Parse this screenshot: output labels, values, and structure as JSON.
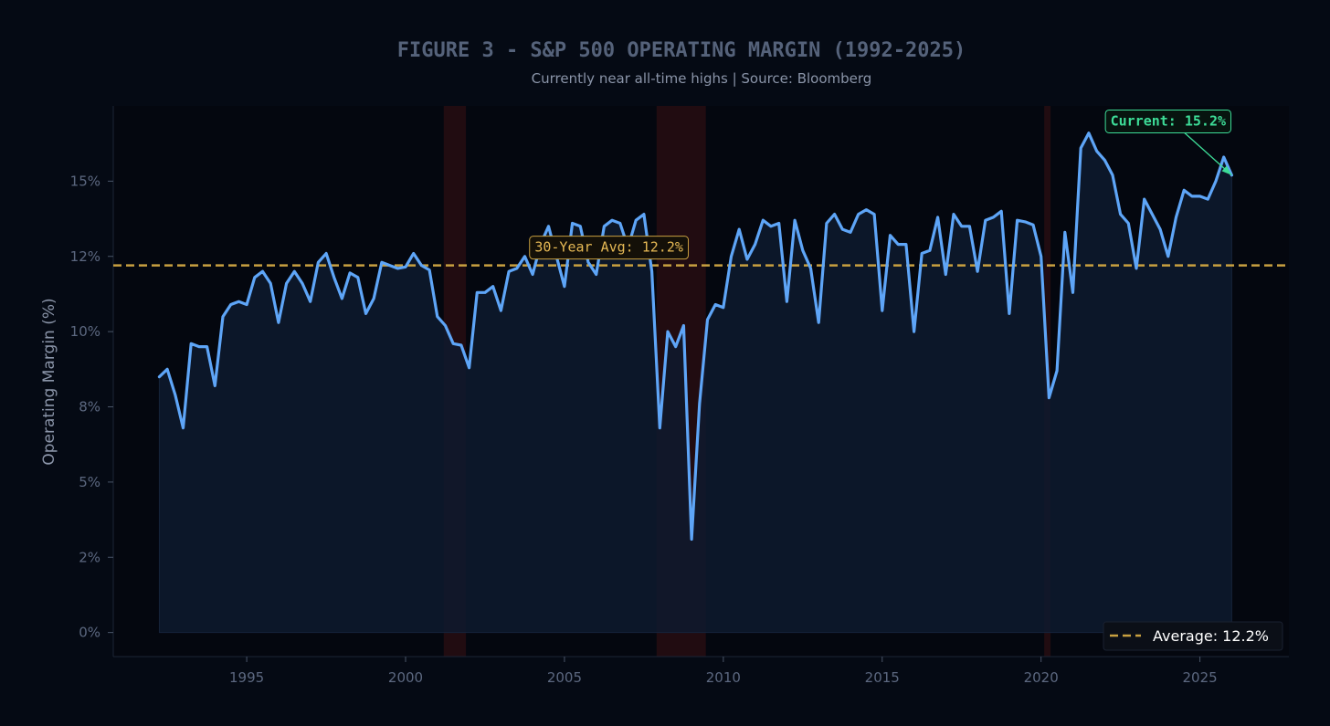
{
  "chart_data": {
    "type": "line",
    "title": "FIGURE 3  -  S&P 500 OPERATING MARGIN  (1992-2025)",
    "subtitle": "Currently near all-time highs  |  Source: Bloomberg",
    "xlabel": "",
    "ylabel": "Operating Margin (%)",
    "xlim": [
      1990.8,
      2027.8
    ],
    "ylim": [
      -0.8,
      17.5
    ],
    "x_ticks": [
      1995,
      2000,
      2005,
      2010,
      2015,
      2020,
      2025
    ],
    "x_tick_labels": [
      "1995",
      "2000",
      "2005",
      "2010",
      "2015",
      "2020",
      "2025"
    ],
    "y_ticks": [
      0,
      2.5,
      5,
      7.5,
      10,
      12.5,
      15
    ],
    "y_tick_labels": [
      "0%",
      "2%",
      "5%",
      "8%",
      "10%",
      "12%",
      "15%"
    ],
    "grid": false,
    "colors": {
      "line": "#5ea5f7",
      "fill": "#0e1a2e",
      "average": "#c8a040",
      "recession": "#3a1014",
      "current": "#3ddc97",
      "avg_label_text": "#e6b955"
    },
    "series": [
      {
        "name": "",
        "x": [
          1992.25,
          1992.5,
          1992.75,
          1993.0,
          1993.25,
          1993.5,
          1993.75,
          1994.0,
          1994.25,
          1994.5,
          1994.75,
          1995.0,
          1995.25,
          1995.5,
          1995.75,
          1996.0,
          1996.25,
          1996.5,
          1996.75,
          1997.0,
          1997.25,
          1997.5,
          1997.75,
          1998.0,
          1998.25,
          1998.5,
          1998.75,
          1999.0,
          1999.25,
          1999.5,
          1999.75,
          2000.0,
          2000.25,
          2000.5,
          2000.75,
          2001.0,
          2001.25,
          2001.5,
          2001.75,
          2002.0,
          2002.25,
          2002.5,
          2002.75,
          2003.0,
          2003.25,
          2003.5,
          2003.75,
          2004.0,
          2004.25,
          2004.5,
          2004.75,
          2005.0,
          2005.25,
          2005.5,
          2005.75,
          2006.0,
          2006.25,
          2006.5,
          2006.75,
          2007.0,
          2007.25,
          2007.5,
          2007.75,
          2008.0,
          2008.25,
          2008.5,
          2008.75,
          2009.0,
          2009.25,
          2009.5,
          2009.75,
          2010.0,
          2010.25,
          2010.5,
          2010.75,
          2011.0,
          2011.25,
          2011.5,
          2011.75,
          2012.0,
          2012.25,
          2012.5,
          2012.75,
          2013.0,
          2013.25,
          2013.5,
          2013.75,
          2014.0,
          2014.25,
          2014.5,
          2014.75,
          2015.0,
          2015.25,
          2015.5,
          2015.75,
          2016.0,
          2016.25,
          2016.5,
          2016.75,
          2017.0,
          2017.25,
          2017.5,
          2017.75,
          2018.0,
          2018.25,
          2018.5,
          2018.75,
          2019.0,
          2019.25,
          2019.5,
          2019.75,
          2020.0,
          2020.25,
          2020.5,
          2020.75,
          2021.0,
          2021.25,
          2021.5,
          2021.75,
          2022.0,
          2022.25,
          2022.5,
          2022.75,
          2023.0,
          2023.25,
          2023.5,
          2023.75,
          2024.0,
          2024.25,
          2024.5,
          2024.75,
          2025.0,
          2025.25,
          2025.5,
          2025.75,
          2026.0
        ],
        "y": [
          8.5,
          8.75,
          7.9,
          6.8,
          9.6,
          9.5,
          9.5,
          8.2,
          10.5,
          10.9,
          11.0,
          10.9,
          11.8,
          12.0,
          11.6,
          10.3,
          11.6,
          12.0,
          11.6,
          11.0,
          12.3,
          12.6,
          11.8,
          11.1,
          11.95,
          11.8,
          10.6,
          11.1,
          12.3,
          12.2,
          12.1,
          12.15,
          12.6,
          12.2,
          12.05,
          10.5,
          10.2,
          9.6,
          9.55,
          8.8,
          11.3,
          11.3,
          11.5,
          10.7,
          12.0,
          12.1,
          12.5,
          11.9,
          12.9,
          13.5,
          12.5,
          11.5,
          13.6,
          13.5,
          12.3,
          11.9,
          13.5,
          13.7,
          13.6,
          12.8,
          13.7,
          13.9,
          12.0,
          6.8,
          10.0,
          9.5,
          10.2,
          3.1,
          7.6,
          10.4,
          10.9,
          10.8,
          12.5,
          13.4,
          12.4,
          12.9,
          13.7,
          13.5,
          13.6,
          11.0,
          13.7,
          12.7,
          12.1,
          10.3,
          13.6,
          13.9,
          13.4,
          13.3,
          13.9,
          14.05,
          13.9,
          10.7,
          13.2,
          12.9,
          12.9,
          10.0,
          12.6,
          12.7,
          13.8,
          11.9,
          13.9,
          13.5,
          13.5,
          12.0,
          13.7,
          13.8,
          14.0,
          10.6,
          13.7,
          13.65,
          13.55,
          12.5,
          7.8,
          8.7,
          13.3,
          11.3,
          16.1,
          16.6,
          16.0,
          15.7,
          15.2,
          13.9,
          13.6,
          12.1,
          14.4,
          13.9,
          13.4,
          12.5,
          13.8,
          14.7,
          14.5,
          14.5,
          14.4,
          15.0,
          15.8,
          15.2
        ]
      }
    ],
    "average": {
      "value": 12.2,
      "label": "30-Year Avg: 12.2%",
      "label_x": 2006.4
    },
    "current": {
      "label": "Current: 15.2%",
      "value": 15.2,
      "x": 2026.0,
      "label_x": 2024.0,
      "label_y": 17.0
    },
    "recessions": [
      {
        "start": 2001.2,
        "end": 2001.9
      },
      {
        "start": 2007.9,
        "end": 2009.45
      },
      {
        "start": 2020.1,
        "end": 2020.3
      }
    ],
    "legend": {
      "position": "lower-right",
      "entries": [
        "Average: 12.2%"
      ]
    }
  }
}
